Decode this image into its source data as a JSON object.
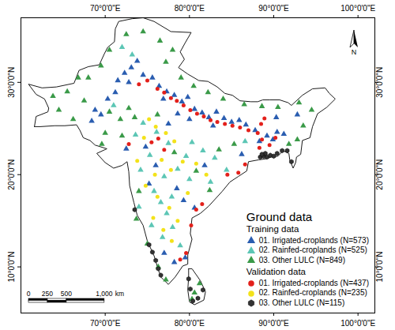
{
  "chart_data": {
    "type": "scatter",
    "legend_title": "Ground data",
    "legend": "bottom-right",
    "north_arrow": "N",
    "xlim": [
      60,
      102
    ],
    "ylim": [
      5,
      37
    ],
    "xticks": [
      {
        "value": 70,
        "label": "70°0'0\"E"
      },
      {
        "value": 80,
        "label": "80°0'0\"E"
      },
      {
        "value": 90,
        "label": "90°0'0\"E"
      },
      {
        "value": 100,
        "label": "100°0'0\"E"
      }
    ],
    "yticks": [
      {
        "value": 10,
        "label": "10°0'0\"N"
      },
      {
        "value": 20,
        "label": "20°0'0\"N"
      },
      {
        "value": 30,
        "label": "30°0'0\"N"
      }
    ],
    "scale_bar": {
      "ticks": [
        0,
        250,
        500,
        {
          "value": 1000,
          "label": "1,000"
        }
      ],
      "unit": "km"
    },
    "land_outline": [
      [
        [
          61.6,
          25.2
        ],
        [
          61.8,
          26.3
        ],
        [
          63.2,
          26.8
        ],
        [
          63.3,
          27.2
        ],
        [
          62.8,
          28.2
        ],
        [
          61.8,
          28.7
        ],
        [
          60.9,
          29.8
        ],
        [
          62.5,
          29.4
        ],
        [
          64.2,
          29.5
        ],
        [
          66.3,
          29.9
        ],
        [
          66.9,
          31.3
        ],
        [
          68.0,
          31.7
        ],
        [
          69.3,
          31.9
        ],
        [
          69.9,
          33.1
        ],
        [
          70.3,
          33.8
        ],
        [
          71.1,
          34.4
        ],
        [
          71.2,
          35.8
        ],
        [
          71.6,
          36.6
        ],
        [
          73.2,
          36.9
        ],
        [
          74.5,
          37.0
        ],
        [
          75.8,
          36.6
        ],
        [
          77.8,
          35.5
        ],
        [
          80.2,
          35.4
        ],
        [
          79.5,
          34.3
        ],
        [
          78.9,
          33.3
        ],
        [
          79.4,
          32.5
        ],
        [
          78.7,
          31.6
        ],
        [
          79.8,
          30.9
        ],
        [
          81.1,
          30.2
        ],
        [
          82.2,
          30.1
        ],
        [
          83.3,
          29.5
        ],
        [
          84.2,
          28.8
        ],
        [
          85.1,
          28.6
        ],
        [
          86.0,
          28.0
        ],
        [
          87.3,
          27.9
        ],
        [
          88.1,
          27.9
        ],
        [
          88.7,
          28.1
        ],
        [
          89.5,
          28.1
        ],
        [
          90.7,
          28.1
        ],
        [
          91.7,
          27.8
        ],
        [
          92.1,
          27.5
        ],
        [
          93.4,
          28.6
        ],
        [
          94.6,
          29.3
        ],
        [
          96.1,
          29.4
        ],
        [
          96.6,
          28.8
        ],
        [
          97.3,
          28.2
        ],
        [
          96.3,
          27.3
        ],
        [
          95.2,
          26.6
        ],
        [
          94.6,
          25.2
        ],
        [
          94.3,
          24.0
        ],
        [
          93.4,
          23.7
        ],
        [
          93.2,
          22.2
        ],
        [
          92.7,
          21.9
        ],
        [
          92.6,
          21.3
        ],
        [
          92.3,
          20.7
        ],
        [
          91.9,
          21.6
        ],
        [
          91.8,
          22.3
        ],
        [
          91.1,
          22.6
        ],
        [
          90.5,
          22.0
        ],
        [
          89.7,
          21.9
        ],
        [
          89.0,
          21.7
        ],
        [
          88.2,
          21.6
        ],
        [
          87.0,
          21.4
        ],
        [
          86.8,
          20.4
        ],
        [
          85.8,
          19.8
        ],
        [
          84.8,
          19.2
        ],
        [
          83.9,
          18.2
        ],
        [
          82.3,
          16.6
        ],
        [
          81.3,
          15.8
        ],
        [
          80.3,
          15.3
        ],
        [
          80.1,
          13.6
        ],
        [
          80.3,
          13.0
        ],
        [
          79.8,
          11.3
        ],
        [
          79.8,
          10.3
        ],
        [
          79.2,
          10.1
        ],
        [
          78.3,
          8.9
        ],
        [
          77.5,
          8.1
        ],
        [
          76.6,
          8.9
        ],
        [
          76.2,
          10.0
        ],
        [
          75.8,
          11.2
        ],
        [
          75.0,
          12.8
        ],
        [
          74.5,
          14.5
        ],
        [
          73.8,
          15.6
        ],
        [
          73.4,
          17.0
        ],
        [
          72.9,
          18.8
        ],
        [
          72.8,
          20.3
        ],
        [
          72.6,
          21.4
        ],
        [
          72.0,
          21.0
        ],
        [
          71.0,
          20.7
        ],
        [
          70.0,
          21.3
        ],
        [
          69.0,
          22.3
        ],
        [
          70.2,
          22.8
        ],
        [
          68.8,
          23.2
        ],
        [
          68.2,
          23.7
        ],
        [
          67.4,
          24.0
        ],
        [
          67.0,
          24.8
        ],
        [
          66.6,
          25.4
        ],
        [
          65.2,
          25.3
        ],
        [
          64.0,
          25.3
        ],
        [
          62.3,
          25.2
        ],
        [
          61.6,
          25.2
        ]
      ],
      [
        [
          79.9,
          9.8
        ],
        [
          80.3,
          9.8
        ],
        [
          81.3,
          8.5
        ],
        [
          81.9,
          7.3
        ],
        [
          81.7,
          6.4
        ],
        [
          80.6,
          5.9
        ],
        [
          80.0,
          6.2
        ],
        [
          79.8,
          7.5
        ],
        [
          79.9,
          8.9
        ],
        [
          79.9,
          9.8
        ]
      ]
    ],
    "series": [
      {
        "name": "01. Irrigated-croplands (N=573)",
        "group": "Training data",
        "color": "#2a5db0",
        "marker": "triangle",
        "x": [
          71.5,
          72.3,
          73.1,
          73.8,
          72.8,
          71.2,
          70.3,
          68.8,
          68.4,
          69.5,
          74.5,
          75.6,
          76.4,
          77.3,
          76.9,
          78.2,
          79.1,
          79.8,
          80.6,
          81.5,
          82.3,
          83.2,
          84.1,
          85.0,
          85.9,
          86.7,
          87.8,
          88.3,
          89.2,
          89.9,
          90.4,
          91.2,
          78.6,
          80.0,
          82.8,
          77.5,
          74.8,
          72.5,
          78.5,
          79.3,
          80.6,
          79.5,
          78.2,
          77.0,
          76.0,
          75.2,
          81.8,
          86.2,
          90.3,
          92.8
        ],
        "values": [
          30.2,
          31.0,
          31.6,
          32.3,
          30.0,
          28.9,
          28.2,
          27.0,
          25.8,
          26.5,
          30.8,
          30.5,
          29.6,
          29.0,
          28.2,
          28.6,
          27.9,
          28.4,
          27.1,
          26.7,
          26.2,
          26.8,
          26.1,
          25.7,
          25.9,
          25.4,
          24.8,
          23.6,
          24.2,
          23.8,
          24.6,
          24.4,
          26.6,
          26.0,
          25.3,
          25.5,
          23.0,
          22.8,
          18.5,
          17.2,
          16.4,
          11.0,
          10.5,
          11.5,
          21.0,
          19.0,
          21.0,
          22.2,
          26.2,
          26.5
        ]
      },
      {
        "name": "02. Rainfed-croplands (N=525)",
        "group": "Training data",
        "color": "#5cc6b5",
        "marker": "triangle",
        "x": [
          74.2,
          75.8,
          76.6,
          77.3,
          75.5,
          76.8,
          78.0,
          77.0,
          78.6,
          79.6,
          77.5,
          76.1,
          74.5,
          73.6,
          75.3,
          80.3,
          81.6,
          83.0,
          84.4,
          73.2,
          72.0,
          86.6,
          78.9,
          74.0,
          77.9,
          80.0,
          82.5,
          71.0
        ],
        "values": [
          20.5,
          18.2,
          17.0,
          15.8,
          14.5,
          13.2,
          14.3,
          19.8,
          20.6,
          22.0,
          23.4,
          24.6,
          25.6,
          24.3,
          22.1,
          23.5,
          22.6,
          21.8,
          20.5,
          33.0,
          33.8,
          23.6,
          12.3,
          16.5,
          17.6,
          19.5,
          19.2,
          27.5
        ]
      },
      {
        "name": "03. Other LULC (N=849)",
        "group": "Training data",
        "color": "#3a9a48",
        "marker": "triangle",
        "x": [
          64.5,
          65.5,
          66.8,
          67.5,
          66.2,
          68.0,
          69.5,
          70.5,
          72.5,
          74.5,
          76.5,
          78.0,
          77.2,
          79.0,
          80.5,
          82.2,
          84.0,
          86.5,
          88.6,
          90.5,
          93.0,
          94.5,
          93.5,
          92.8,
          91.8,
          70.5,
          71.8,
          72.8,
          73.5,
          70.0,
          69.6,
          72.0,
          74.0,
          73.7,
          75.0,
          76.3,
          77.2,
          80.6,
          81.2,
          80.3,
          82.4,
          83.5,
          85.3,
          80.8,
          78.2,
          76.2,
          63.8
        ],
        "values": [
          27.0,
          29.0,
          30.5,
          28.0,
          26.0,
          30.5,
          31.8,
          33.5,
          35.2,
          35.5,
          34.5,
          33.5,
          32.2,
          30.5,
          29.6,
          28.9,
          28.2,
          27.6,
          27.4,
          27.3,
          27.8,
          27.0,
          25.3,
          23.8,
          23.3,
          26.8,
          26.0,
          27.2,
          26.2,
          24.5,
          23.3,
          24.2,
          18.2,
          15.2,
          12.5,
          10.0,
          8.6,
          7.2,
          8.2,
          6.5,
          18.3,
          22.7,
          23.3,
          20.4,
          22.4,
          26.5,
          28.5
        ]
      },
      {
        "name": "01. Irrigated-croplands (N=437)",
        "group": "Validation data",
        "color": "#e3201b",
        "marker": "circle",
        "x": [
          76.2,
          77.0,
          77.8,
          78.5,
          79.3,
          80.1,
          80.9,
          81.7,
          82.5,
          83.3,
          84.2,
          85.1,
          86.0,
          87.0,
          88.1,
          88.5,
          88.9,
          88.3,
          88.6,
          89.5,
          90.2,
          80.8,
          81.5,
          80.2,
          79.6,
          78.9,
          75.5,
          76.3,
          77.0,
          72.8,
          74.0,
          75.0,
          84.5,
          85.8,
          86.6
        ],
        "values": [
          29.3,
          28.9,
          28.3,
          28.0,
          27.5,
          27.0,
          26.6,
          26.3,
          25.9,
          25.7,
          25.5,
          25.3,
          25.1,
          24.8,
          24.5,
          25.5,
          26.1,
          22.9,
          23.8,
          23.2,
          24.0,
          16.2,
          16.8,
          14.5,
          11.5,
          10.8,
          23.5,
          23.9,
          22.7,
          23.3,
          29.8,
          30.2,
          20.0,
          20.2,
          21.1
        ]
      },
      {
        "name": "02. Rainfed-croplands (N=235)",
        "group": "Validation data",
        "color": "#f3e21a",
        "marker": "circle",
        "x": [
          75.2,
          76.0,
          74.6,
          77.2,
          78.2,
          76.7,
          77.8,
          75.9,
          74.8,
          76.2,
          77.6,
          75.7,
          78.6,
          79.8,
          80.8,
          79.2,
          73.8,
          76.9,
          77.9,
          82.0
        ],
        "values": [
          26.0,
          25.2,
          24.0,
          24.5,
          23.6,
          21.6,
          20.5,
          20.0,
          18.8,
          17.6,
          16.4,
          15.3,
          15.0,
          18.0,
          21.2,
          21.4,
          21.5,
          14.0,
          12.8,
          20.0
        ]
      },
      {
        "name": "03. Other LULC (N=115)",
        "group": "Validation data",
        "color": "#333333",
        "marker": "hexagon",
        "x": [
          88.4,
          88.8,
          89.2,
          89.6,
          90.0,
          90.4,
          89.0,
          88.6,
          91.0,
          91.6,
          75.2,
          75.6,
          76.0,
          76.3,
          76.6,
          80.4,
          81.0,
          81.6,
          80.1,
          79.9,
          92.1,
          73.5
        ],
        "values": [
          21.9,
          22.0,
          21.9,
          22.1,
          22.0,
          22.3,
          22.3,
          22.2,
          22.6,
          22.6,
          12.4,
          11.6,
          10.7,
          9.8,
          9.1,
          6.3,
          6.6,
          7.5,
          7.6,
          8.7,
          21.4,
          16.2
        ]
      }
    ]
  }
}
